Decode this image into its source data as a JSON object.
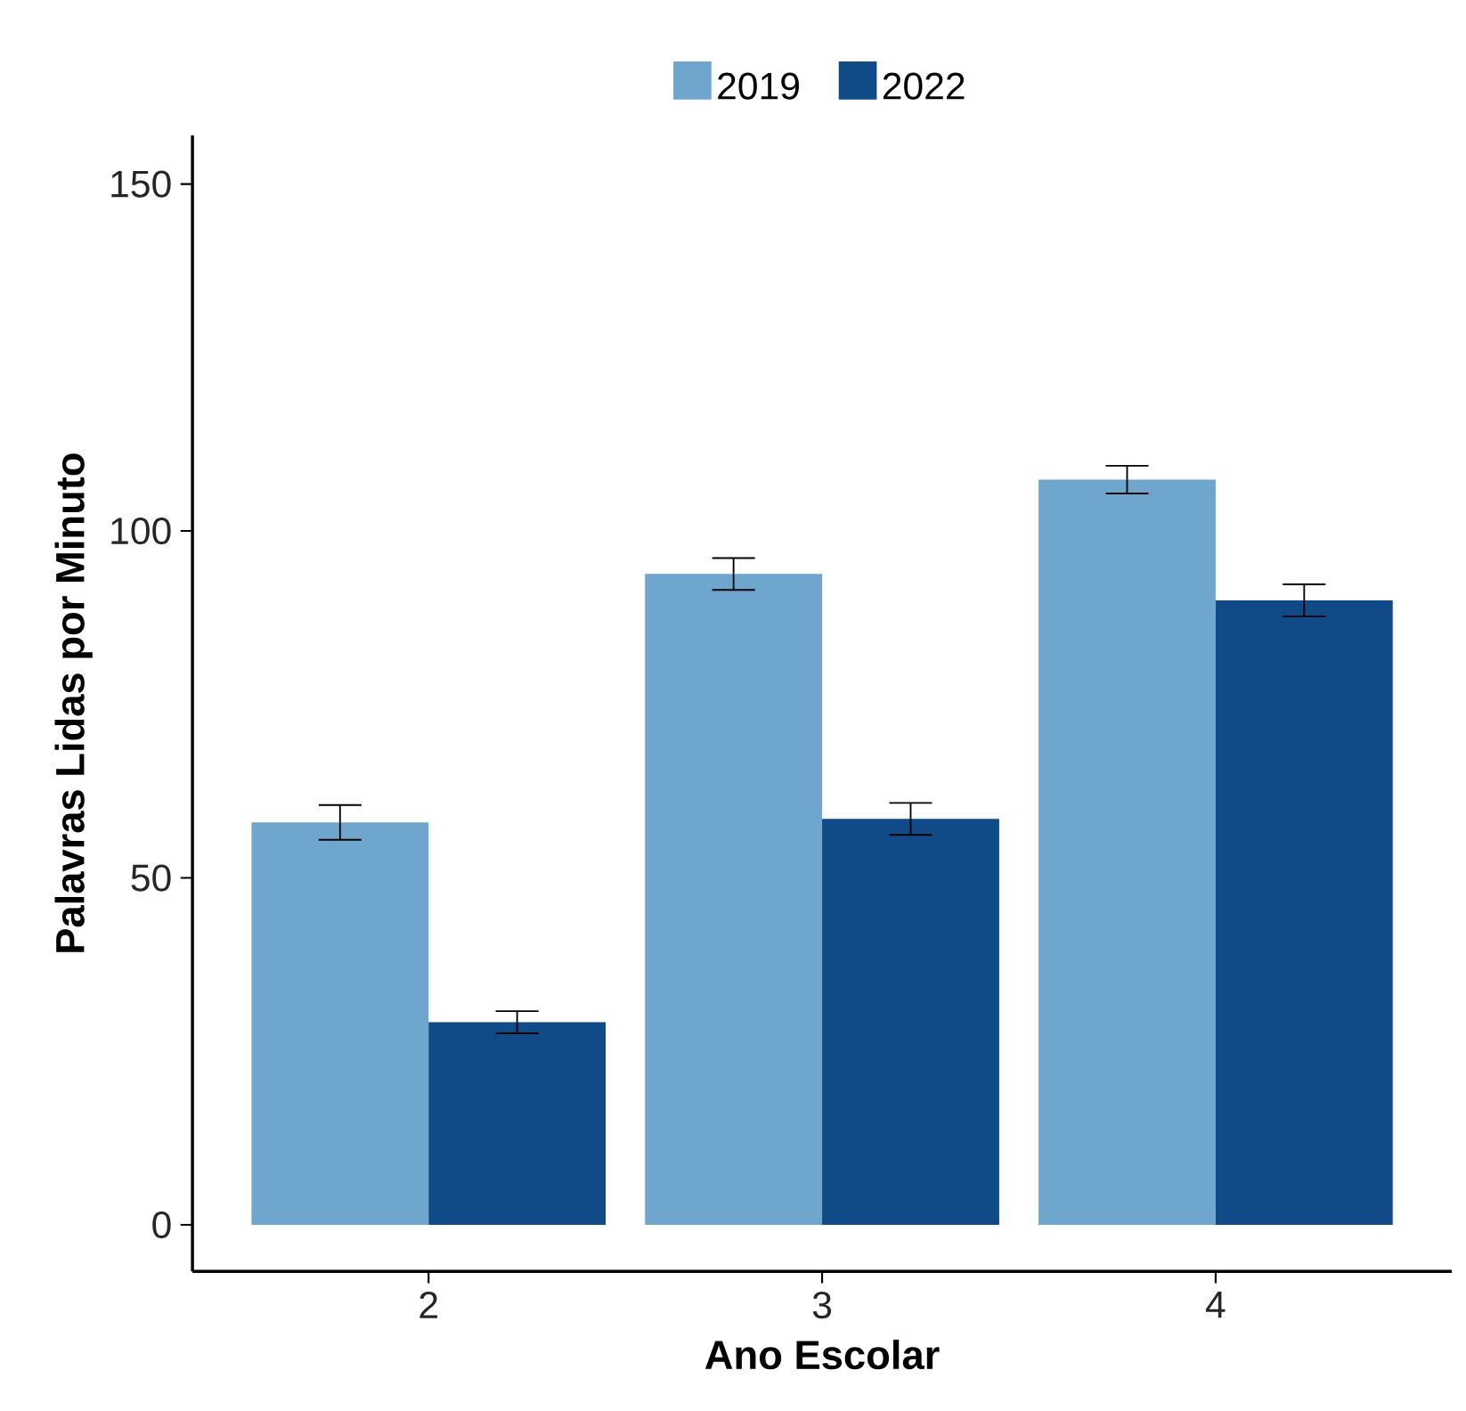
{
  "chart_data": {
    "type": "bar",
    "xlabel": "Ano Escolar",
    "ylabel": "Palavras Lidas por Minuto",
    "categories": [
      "2",
      "3",
      "4"
    ],
    "series": [
      {
        "name": "2019",
        "color": "#6ea6cd",
        "values": [
          58,
          93.8,
          107.4
        ],
        "errors": [
          2.5,
          2.3,
          2
        ]
      },
      {
        "name": "2022",
        "color": "#114b87",
        "values": [
          29.2,
          58.5,
          90
        ],
        "errors": [
          1.6,
          2.3,
          2.3
        ]
      }
    ],
    "ylim": [
      -6.7,
      157
    ],
    "yticks": [
      0,
      50,
      100,
      150
    ],
    "legend": "top"
  }
}
